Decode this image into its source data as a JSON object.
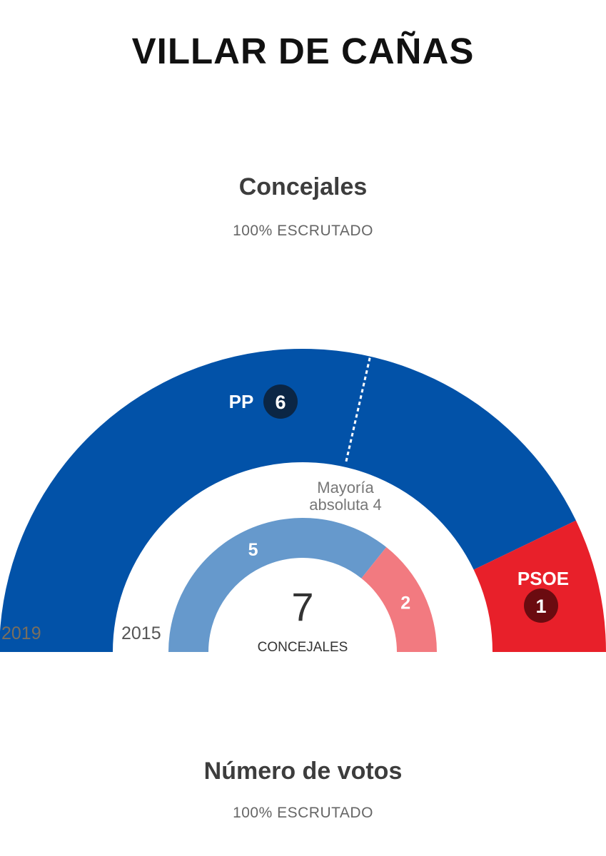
{
  "page": {
    "title": "VILLAR DE CAÑAS"
  },
  "concejales_section": {
    "title": "Concejales",
    "subtitle": "100% ESCRUTADO"
  },
  "votos_section": {
    "title": "Número de votos",
    "subtitle": "100% ESCRUTADO"
  },
  "chart_data": {
    "type": "semicircle",
    "total_seats": 7,
    "total_label": "CONCEJALES",
    "majority_label_line1": "Mayoría",
    "majority_label_line2": "absoluta 4",
    "majority_seats": 4,
    "outer": {
      "year_label": "2019",
      "parties": [
        {
          "name": "PP",
          "seats": 6,
          "color": "#0252a8",
          "badge_color": "#0b2645"
        },
        {
          "name": "PSOE",
          "seats": 1,
          "color": "#e8202a",
          "badge_color": "#6b0b10"
        }
      ]
    },
    "inner": {
      "year_label": "2015",
      "parties": [
        {
          "seats": 5,
          "color": "#6699cc"
        },
        {
          "seats": 2,
          "color": "#f27a80"
        }
      ]
    }
  }
}
